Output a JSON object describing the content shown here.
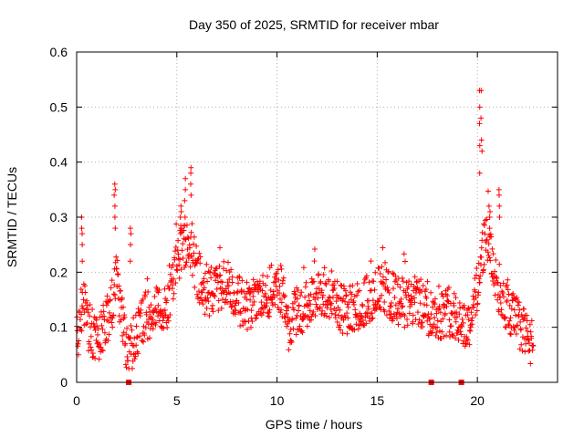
{
  "chart_data": {
    "type": "scatter",
    "title": "Day 350 of 2025, SRMTID for receiver mbar",
    "xlabel": "GPS time / hours",
    "ylabel": "SRMTID / TECUs",
    "xlim": [
      0,
      24
    ],
    "ylim": [
      0,
      0.6
    ],
    "xticks": [
      0,
      5,
      10,
      15,
      20
    ],
    "xtick_labels": [
      "0",
      "5",
      "10",
      "15",
      "20"
    ],
    "yticks": [
      0,
      0.1,
      0.2,
      0.3,
      0.4,
      0.5,
      0.6
    ],
    "ytick_labels": [
      "0",
      "0.1",
      "0.2",
      "0.3",
      "0.4",
      "0.5",
      "0.6"
    ],
    "grid": true,
    "marker": "plus",
    "color": "#ff0000",
    "zero_markers": {
      "marker": "square",
      "x": [
        2.6,
        17.7,
        19.2
      ]
    },
    "trend": {
      "x": [
        0,
        0.3,
        0.6,
        1.0,
        1.4,
        1.8,
        2.0,
        2.3,
        2.6,
        3.0,
        3.5,
        4.0,
        4.5,
        5.0,
        5.3,
        5.6,
        6.0,
        6.5,
        7.0,
        7.5,
        8.0,
        8.5,
        9.0,
        9.5,
        10.0,
        10.3,
        10.6,
        11.0,
        11.5,
        12.0,
        12.5,
        13.0,
        13.5,
        14.0,
        14.5,
        15.0,
        15.5,
        16.0,
        16.5,
        17.0,
        17.5,
        18.0,
        18.5,
        19.0,
        19.5,
        19.8,
        20.1,
        20.4,
        20.7,
        21.0,
        21.4,
        21.8,
        22.2,
        22.5,
        22.8
      ],
      "y": [
        0.07,
        0.15,
        0.1,
        0.08,
        0.1,
        0.14,
        0.2,
        0.1,
        0.05,
        0.09,
        0.12,
        0.13,
        0.14,
        0.22,
        0.25,
        0.26,
        0.2,
        0.16,
        0.17,
        0.18,
        0.15,
        0.14,
        0.15,
        0.16,
        0.18,
        0.16,
        0.1,
        0.13,
        0.14,
        0.17,
        0.15,
        0.14,
        0.13,
        0.14,
        0.15,
        0.17,
        0.16,
        0.15,
        0.14,
        0.15,
        0.13,
        0.12,
        0.13,
        0.12,
        0.1,
        0.13,
        0.2,
        0.27,
        0.22,
        0.18,
        0.14,
        0.12,
        0.1,
        0.08,
        0.07
      ]
    },
    "highlights": [
      {
        "x": 0.25,
        "y": [
          0.22,
          0.25,
          0.27,
          0.28,
          0.3
        ]
      },
      {
        "x": 1.9,
        "y": [
          0.28,
          0.3,
          0.32,
          0.34,
          0.35,
          0.36
        ]
      },
      {
        "x": 2.7,
        "y": [
          0.22,
          0.25,
          0.27,
          0.28
        ]
      },
      {
        "x": 5.2,
        "y": [
          0.28,
          0.3,
          0.31,
          0.32
        ]
      },
      {
        "x": 5.4,
        "y": [
          0.3,
          0.33,
          0.35,
          0.37
        ]
      },
      {
        "x": 5.7,
        "y": [
          0.34,
          0.36,
          0.38,
          0.39
        ]
      },
      {
        "x": 20.1,
        "y": [
          0.38,
          0.43,
          0.47,
          0.5,
          0.53
        ]
      },
      {
        "x": 20.2,
        "y": [
          0.42,
          0.44,
          0.48,
          0.53
        ]
      },
      {
        "x": 20.6,
        "y": [
          0.28,
          0.3,
          0.31,
          0.32
        ]
      },
      {
        "x": 21.1,
        "y": [
          0.3,
          0.32,
          0.34,
          0.35
        ]
      }
    ]
  }
}
